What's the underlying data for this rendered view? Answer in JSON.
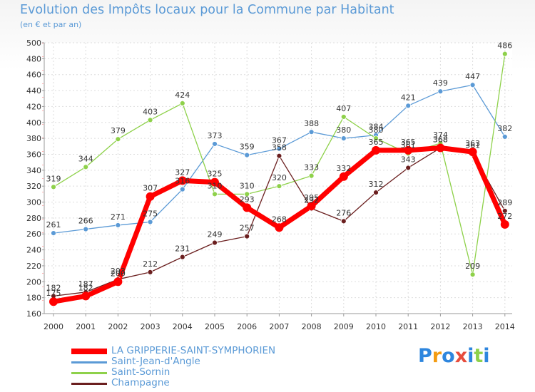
{
  "chart_data": {
    "type": "line",
    "title": "Evolution des Impôts locaux pour la Commune par Habitant",
    "subtitle": "(en € et par an)",
    "xlabel": "",
    "ylabel": "",
    "ylim": [
      160,
      500
    ],
    "yticks": [
      160,
      180,
      200,
      220,
      240,
      260,
      280,
      300,
      320,
      340,
      360,
      380,
      400,
      420,
      440,
      460,
      480,
      500
    ],
    "x": [
      "2000",
      "2001",
      "2002",
      "2003",
      "2004",
      "2005",
      "2006",
      "2007",
      "2008",
      "2009",
      "2010",
      "2011",
      "2012",
      "2013",
      "2014"
    ],
    "grid": true,
    "legend_position": "bottom-left",
    "series": [
      {
        "name": "LA GRIPPERIE-SAINT-SYMPHORIEN",
        "color": "#ff0000",
        "values": [
          175,
          182,
          200,
          307,
          327,
          325,
          293,
          268,
          295,
          332,
          365,
          365,
          368,
          363,
          272
        ]
      },
      {
        "name": "Saint-Jean-d'Angle",
        "color": "#5b9ad6",
        "values": [
          261,
          266,
          271,
          275,
          316,
          373,
          359,
          367,
          388,
          380,
          384,
          421,
          439,
          447,
          382
        ]
      },
      {
        "name": "Saint-Sornin",
        "color": "#8ed14a",
        "values": [
          319,
          344,
          379,
          403,
          424,
          310,
          310,
          320,
          333,
          407,
          380,
          361,
          374,
          209,
          486
        ]
      },
      {
        "name": "Champagne",
        "color": "#6b1f1f",
        "values": [
          182,
          187,
          203,
          212,
          231,
          249,
          257,
          358,
          292,
          276,
          312,
          343,
          368,
          361,
          289
        ]
      }
    ]
  },
  "brand": {
    "text": "Proxiti",
    "letters": [
      "P",
      "r",
      "o",
      "x",
      "i",
      "t",
      "i"
    ],
    "colors": [
      "#2e86de",
      "#f39c12",
      "#2e86de",
      "#e74c3c",
      "#2e86de",
      "#8ed14a",
      "#2e86de"
    ]
  }
}
